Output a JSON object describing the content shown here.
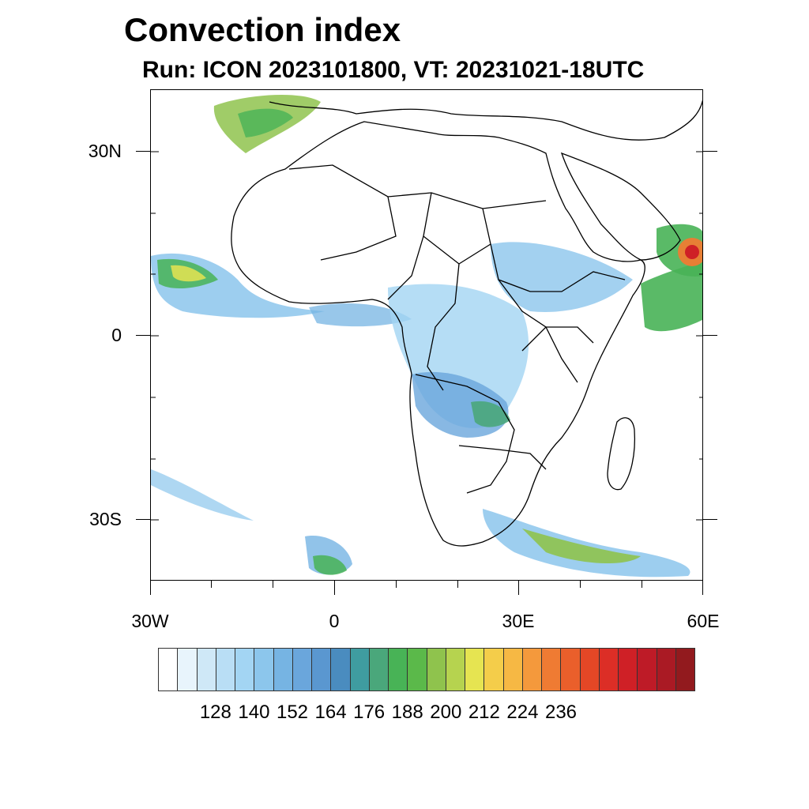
{
  "title": "Convection index",
  "subtitle": "Run: ICON 2023101800,  VT: 20231021-18UTC",
  "map": {
    "lat_labels": [
      "30N",
      "0",
      "30S"
    ],
    "lon_labels": [
      "30W",
      "0",
      "30E",
      "60E"
    ],
    "extent": {
      "lon_min": -30,
      "lon_max": 60,
      "lat_min": -40,
      "lat_max": 40
    }
  },
  "colorbar": {
    "colors": [
      "#ffffff",
      "#e8f4fc",
      "#cfe8f7",
      "#b9def5",
      "#a3d5f3",
      "#8cc6ec",
      "#76b4e3",
      "#6aa6dc",
      "#5a97d0",
      "#4a8cbf",
      "#3f9ca0",
      "#4aa77b",
      "#48b356",
      "#5bb94a",
      "#8fc34d",
      "#b6d34f",
      "#e6e451",
      "#f4cd4a",
      "#f6b844",
      "#f4993c",
      "#ef7b33",
      "#ea5f2b",
      "#e44726",
      "#dc2e26",
      "#cf2026",
      "#be1b27",
      "#aa1a24",
      "#921a1e"
    ],
    "tick_labels": [
      "128",
      "140",
      "152",
      "164",
      "176",
      "188",
      "200",
      "212",
      "224",
      "236"
    ]
  }
}
